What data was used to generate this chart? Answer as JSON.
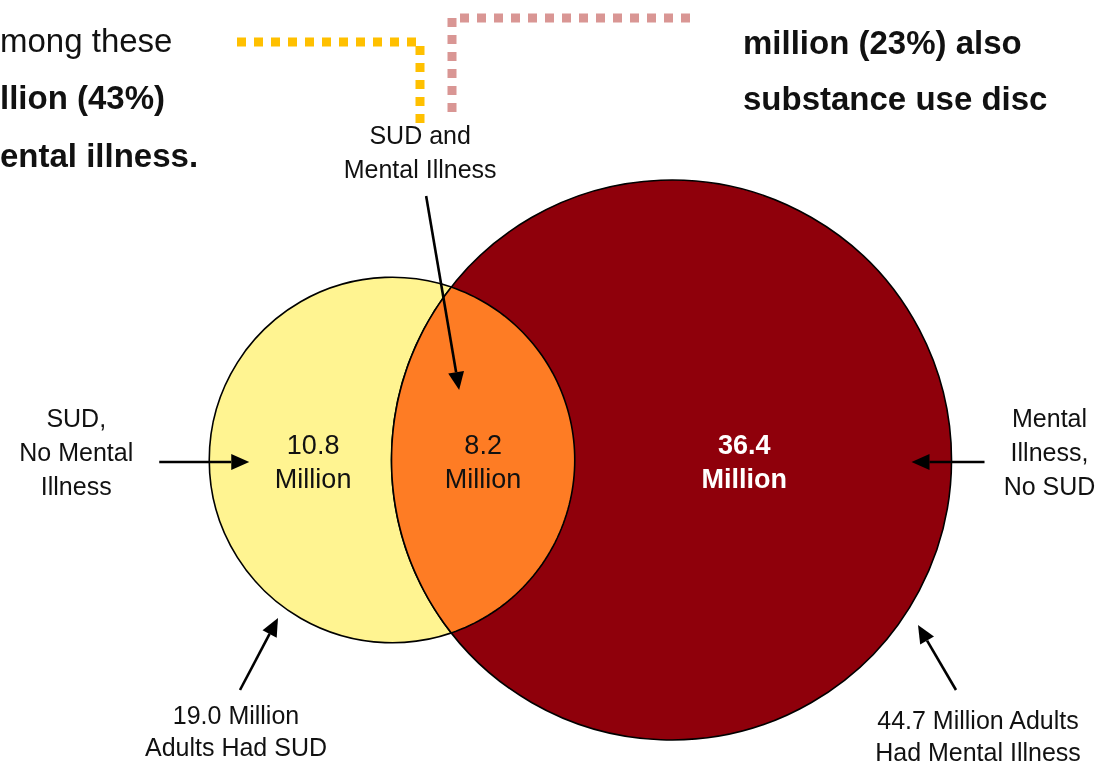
{
  "chart_data": {
    "type": "other",
    "categories": [
      "SUD,\nNo Mental\nIllness",
      "SUD and\nMental Illness",
      "Mental\nIllness,\nNo SUD"
    ],
    "values": [
      10.8,
      8.2,
      36.4
    ],
    "colors": [
      "#fff491",
      "#fe7c24",
      "#8f000b"
    ],
    "value_labels": [
      "10.8\nMillion",
      "8.2\nMillion",
      "36.4\nMillion"
    ],
    "totals": [
      "19.0 Million\nAdults Had SUD",
      "44.7 Million Adults\nHad Mental Illness"
    ],
    "annotations": [
      "mong these",
      "llion (43%)",
      "ental illness.",
      "million (23%) also",
      "substance use disc"
    ]
  }
}
